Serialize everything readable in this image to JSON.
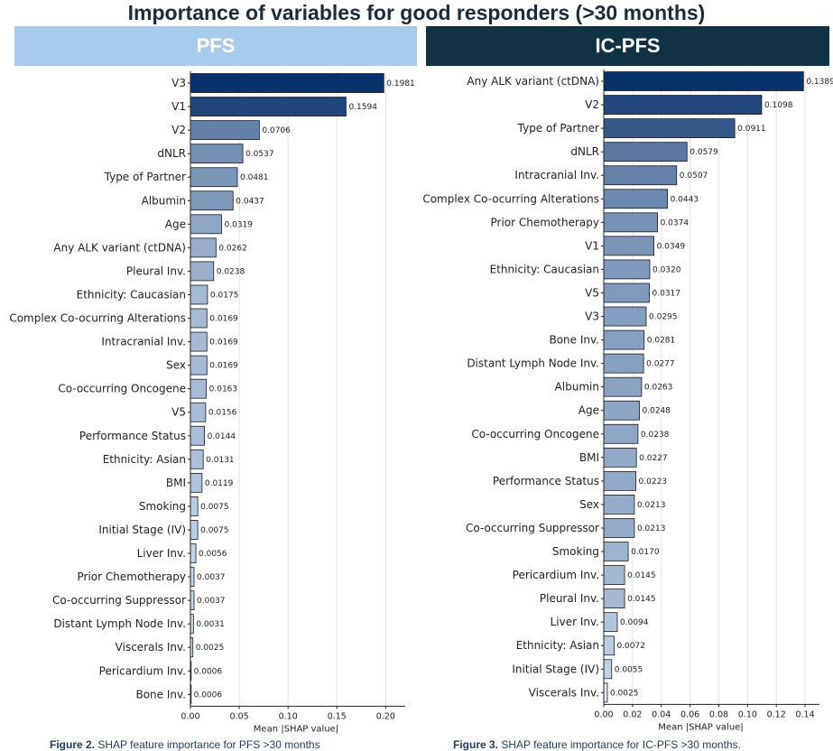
{
  "title": "Importance of variables for good responders (>30 months)",
  "panels": {
    "left": {
      "banner": "PFS",
      "caption_bold": "Figure 2.",
      "caption_text": " SHAP feature importance for PFS >30 months"
    },
    "right": {
      "banner": "IC-PFS",
      "caption_bold": "Figure 3.",
      "caption_text": " SHAP feature importance for IC-PFS >30 months."
    }
  },
  "chart_data": [
    {
      "type": "bar",
      "orientation": "horizontal",
      "title": "PFS",
      "xlabel": "Mean |SHAP value|",
      "xlim": [
        0,
        0.22
      ],
      "xticks": [
        0.0,
        0.05,
        0.1,
        0.15,
        0.2
      ],
      "xtick_labels": [
        "0.00",
        "0.05",
        "0.10",
        "0.15",
        "0.20"
      ],
      "grid": "vertical",
      "categories": [
        "V3",
        "V1",
        "V2",
        "dNLR",
        "Type of Partner",
        "Albumin",
        "Age",
        "Any ALK variant (ctDNA)",
        "Pleural Inv.",
        "Ethnicity: Caucasian",
        "Complex Co-ocurring Alterations",
        "Intracranial Inv.",
        "Sex",
        "Co-occurring Oncogene",
        "V5",
        "Performance Status",
        "Ethnicity: Asian",
        "BMI",
        "Smoking",
        "Initial Stage (IV)",
        "Liver Inv.",
        "Prior Chemotherapy",
        "Co-occurring Suppressor",
        "Distant Lymph Node Inv.",
        "Viscerals Inv.",
        "Pericardium Inv.",
        "Bone Inv."
      ],
      "values": [
        0.1981,
        0.1594,
        0.0706,
        0.0537,
        0.0481,
        0.0437,
        0.0319,
        0.0262,
        0.0238,
        0.0175,
        0.0169,
        0.0169,
        0.0169,
        0.0163,
        0.0156,
        0.0144,
        0.0131,
        0.0119,
        0.0075,
        0.0075,
        0.0056,
        0.0037,
        0.0037,
        0.0031,
        0.0025,
        0.0006,
        0.0006
      ],
      "value_labels": [
        "0.1981",
        "0.1594",
        "0.0706",
        "0.0537",
        "0.0481",
        "0.0437",
        "0.0319",
        "0.0262",
        "0.0238",
        "0.0175",
        "0.0169",
        "0.0169",
        "0.0169",
        "0.0163",
        "0.0156",
        "0.0144",
        "0.0131",
        "0.0119",
        "0.0075",
        "0.0075",
        "0.0056",
        "0.0037",
        "0.0037",
        "0.0031",
        "0.0025",
        "0.0006",
        "0.0006"
      ],
      "colormap": [
        "#dce9f7",
        "#08306b"
      ]
    },
    {
      "type": "bar",
      "orientation": "horizontal",
      "title": "IC-PFS",
      "xlabel": "Mean |SHAP value|",
      "xlim": [
        0,
        0.15
      ],
      "xticks": [
        0.0,
        0.02,
        0.04,
        0.06,
        0.08,
        0.1,
        0.12,
        0.14
      ],
      "xtick_labels": [
        "0.00",
        "0.02",
        "0.04",
        "0.06",
        "0.08",
        "0.10",
        "0.12",
        "0.14"
      ],
      "grid": "vertical",
      "categories": [
        "Any ALK variant (ctDNA)",
        "V2",
        "Type of Partner",
        "dNLR",
        "Intracranial Inv.",
        "Complex Co-ocurring Alterations",
        "Prior Chemotherapy",
        "V1",
        "Ethnicity: Caucasian",
        "V5",
        "V3",
        "Bone Inv.",
        "Distant Lymph Node Inv.",
        "Albumin",
        "Age",
        "Co-occurring Oncogene",
        "BMI",
        "Performance Status",
        "Sex",
        "Co-occurring Suppressor",
        "Smoking",
        "Pericardium Inv.",
        "Pleural Inv.",
        "Liver Inv.",
        "Ethnicity: Asian",
        "Initial Stage (IV)",
        "Viscerals Inv."
      ],
      "values": [
        0.1389,
        0.1098,
        0.0911,
        0.0579,
        0.0507,
        0.0443,
        0.0374,
        0.0349,
        0.032,
        0.0317,
        0.0295,
        0.0281,
        0.0277,
        0.0263,
        0.0248,
        0.0238,
        0.0227,
        0.0223,
        0.0213,
        0.0213,
        0.017,
        0.0145,
        0.0145,
        0.0094,
        0.0072,
        0.0055,
        0.0025
      ],
      "value_labels": [
        "0.1389",
        "0.1098",
        "0.0911",
        "0.0579",
        "0.0507",
        "0.0443",
        "0.0374",
        "0.0349",
        "0.0320",
        "0.0317",
        "0.0295",
        "0.0281",
        "0.0277",
        "0.0263",
        "0.0248",
        "0.0238",
        "0.0227",
        "0.0223",
        "0.0213",
        "0.0213",
        "0.0170",
        "0.0145",
        "0.0145",
        "0.0094",
        "0.0072",
        "0.0055",
        "0.0025"
      ],
      "colormap": [
        "#dce9f7",
        "#08306b"
      ]
    }
  ]
}
